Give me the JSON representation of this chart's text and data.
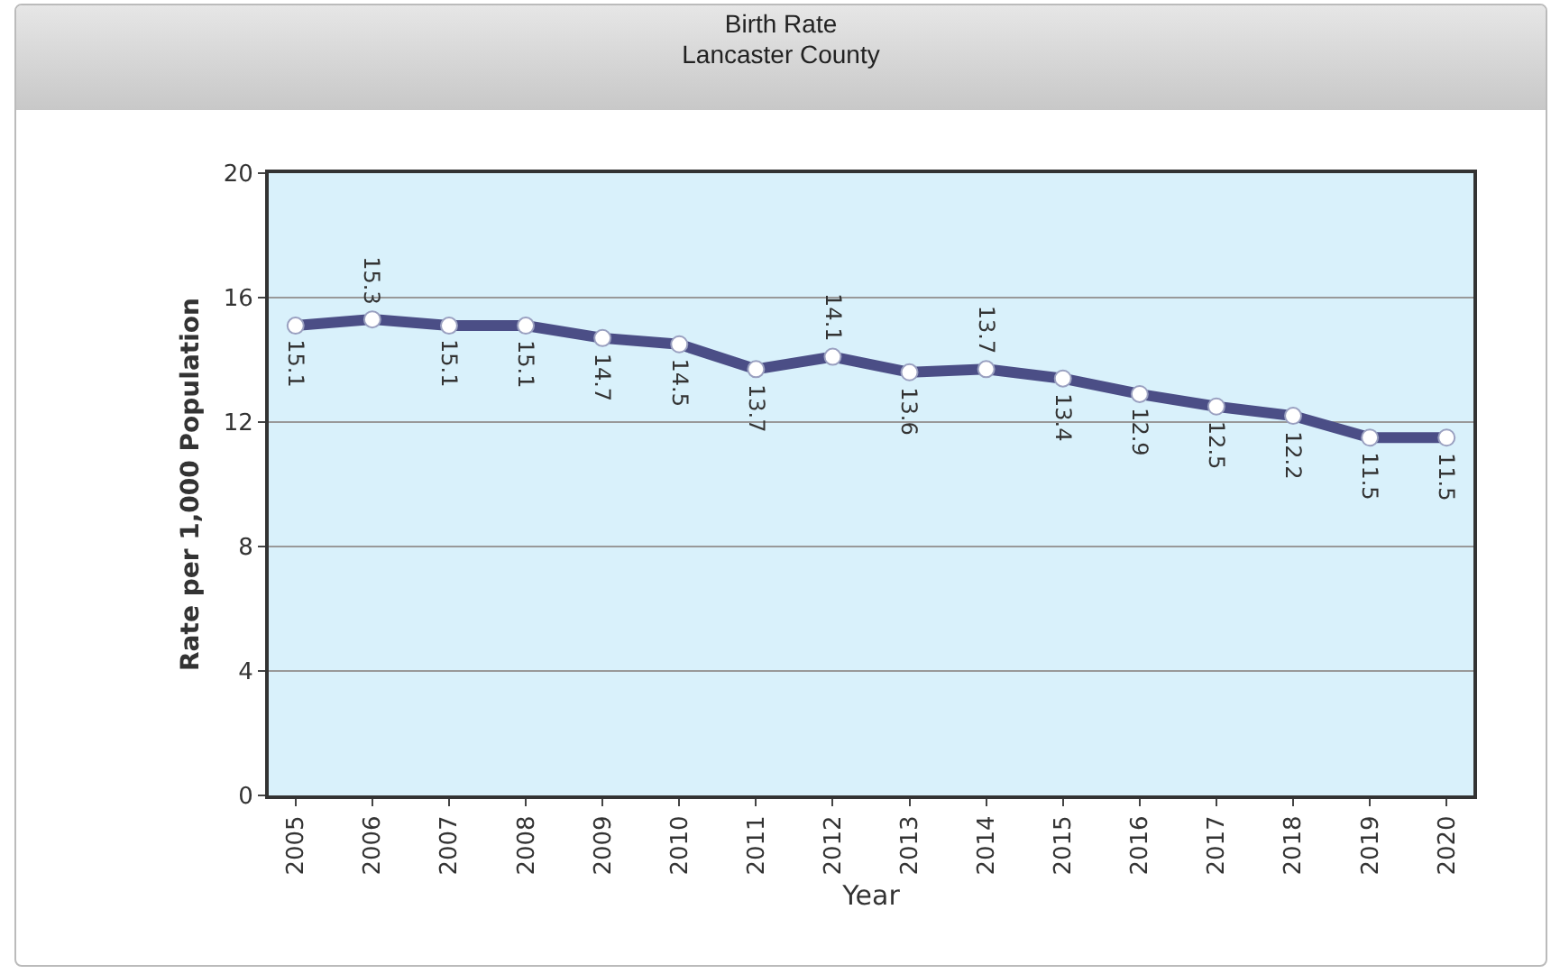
{
  "chart_data": {
    "type": "line",
    "title": "Birth Rate\nLancaster County",
    "xlabel": "Year",
    "ylabel": "Rate per 1,000 Population",
    "categories": [
      "2005",
      "2006",
      "2007",
      "2008",
      "2009",
      "2010",
      "2011",
      "2012",
      "2013",
      "2014",
      "2015",
      "2016",
      "2017",
      "2018",
      "2019",
      "2020"
    ],
    "series": [
      {
        "color": "#4b4e86",
        "values": [
          15.1,
          15.3,
          15.1,
          15.1,
          14.7,
          14.5,
          13.7,
          14.1,
          13.6,
          13.7,
          13.4,
          12.9,
          12.5,
          12.2,
          11.5,
          11.5
        ]
      }
    ],
    "ylim": [
      0,
      20
    ],
    "yticks": [
      0,
      4,
      8,
      12,
      16,
      20
    ],
    "grid": "y",
    "marker": "circle",
    "line_style": "solid",
    "data_labels": true
  }
}
